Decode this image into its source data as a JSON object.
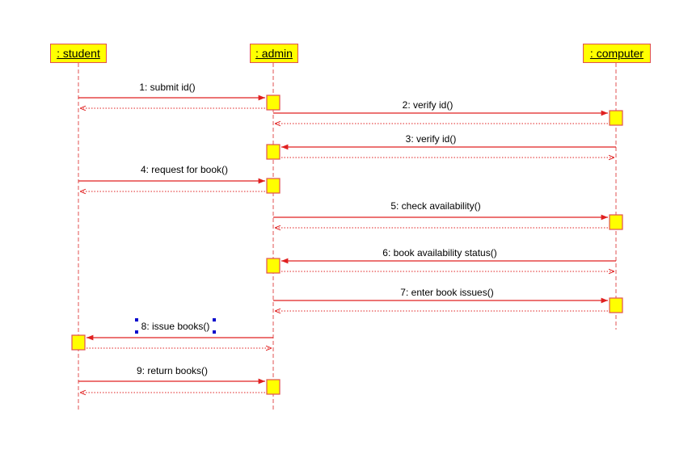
{
  "colors": {
    "line": "#e02020",
    "lifeline": "#e05050",
    "box_fill": "#ffff00",
    "box_border": "#e05050",
    "handle": "#0000cc"
  },
  "lifelines": [
    {
      "id": "student",
      "label": " : student"
    },
    {
      "id": "admin",
      "label": " : admin"
    },
    {
      "id": "computer",
      "label": " : computer"
    }
  ],
  "messages": [
    {
      "label": "1: submit id()",
      "from": "student",
      "to": "admin"
    },
    {
      "label": "2: verify id()",
      "from": "admin",
      "to": "computer"
    },
    {
      "label": "3: verify id()",
      "from": "computer",
      "to": "admin"
    },
    {
      "label": "4: request for book()",
      "from": "student",
      "to": "admin"
    },
    {
      "label": "5: check availability()",
      "from": "admin",
      "to": "computer"
    },
    {
      "label": "6: book availability status()",
      "from": "computer",
      "to": "admin"
    },
    {
      "label": "7: enter book issues()",
      "from": "admin",
      "to": "computer"
    },
    {
      "label": "8: issue books()",
      "from": "admin",
      "to": "student",
      "selected": true
    },
    {
      "label": "9: return books()",
      "from": "student",
      "to": "admin"
    }
  ]
}
